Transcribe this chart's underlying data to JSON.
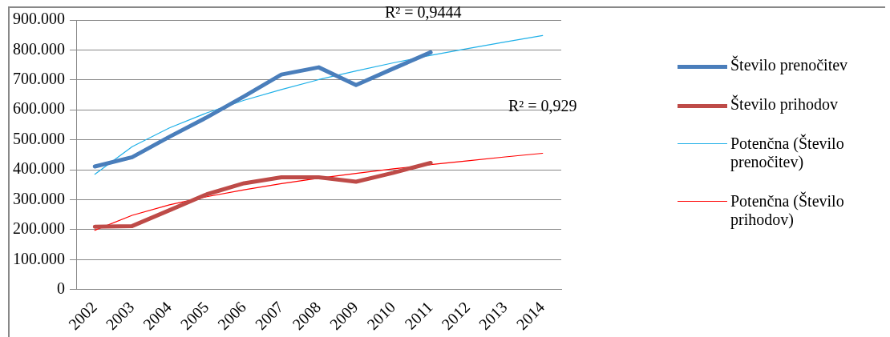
{
  "chart_data": {
    "type": "line",
    "categories": [
      "2002",
      "2003",
      "2004",
      "2005",
      "2006",
      "2007",
      "2008",
      "2009",
      "2010",
      "2011",
      "2012",
      "2013",
      "2014"
    ],
    "series": [
      {
        "name": "Število prenočitev",
        "color": "#4a7ebb",
        "values": [
          411000,
          442000,
          510000,
          575000,
          645000,
          718000,
          742000,
          683000,
          738000,
          792000,
          null,
          null,
          null
        ]
      },
      {
        "name": "Število prihodov",
        "color": "#be4b48",
        "values": [
          210000,
          212000,
          265000,
          318000,
          355000,
          375000,
          375000,
          360000,
          390000,
          423000,
          null,
          null,
          null
        ]
      },
      {
        "name": "Potenčna (Število prenočitev)",
        "color": "#1fb0e8",
        "values": [
          385000,
          477000,
          540000,
          590000,
          632000,
          668000,
          701000,
          730000,
          757000,
          782000,
          805000,
          827000,
          848000
        ]
      },
      {
        "name": "Potenčna (Število prihodov)",
        "color": "#ff0000",
        "values": [
          198000,
          248000,
          283000,
          310000,
          333000,
          354000,
          372000,
          388000,
          403000,
          417000,
          430000,
          443000,
          455000
        ]
      }
    ],
    "ylim": [
      0,
      900000
    ],
    "yticks": [
      0,
      {
        "value": 100000,
        "label": "100.000"
      },
      {
        "value": 200000,
        "label": "200.000"
      },
      {
        "value": 300000,
        "label": "300.000"
      },
      {
        "value": 400000,
        "label": "400.000"
      },
      {
        "value": 500000,
        "label": "500.000"
      },
      {
        "value": 600000,
        "label": "600.000"
      },
      {
        "value": 700000,
        "label": "700.000"
      },
      {
        "value": 800000,
        "label": "800.000"
      },
      {
        "value": 900000,
        "label": "900.000"
      }
    ],
    "annotations": [
      "R² = 0,9444",
      "R² = 0,929"
    ],
    "grid": "y",
    "legend": "right",
    "marker": "none",
    "line_style": "solid"
  }
}
